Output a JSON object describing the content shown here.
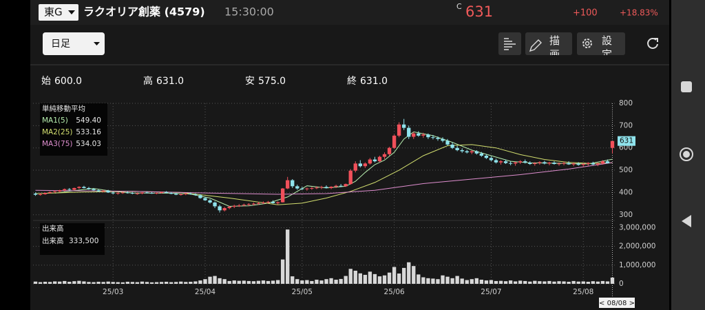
{
  "header": {
    "market": "東G",
    "name": "ラクオリア創薬 (4579)",
    "time": "15:30:00",
    "price_flag": "C",
    "price": "631",
    "change": "+100",
    "change_pct": "+18.83%"
  },
  "toolbar": {
    "period": "日足",
    "draw": "描画",
    "settings": "設定"
  },
  "ohlc_summary": [
    {
      "label": "始",
      "value": "600.0"
    },
    {
      "label": "高",
      "value": "631.0"
    },
    {
      "label": "安",
      "value": "575.0"
    },
    {
      "label": "終",
      "value": "631.0"
    }
  ],
  "chart_data": {
    "type": "candlestick",
    "categories": [
      null,
      null,
      null,
      null,
      null,
      null,
      null,
      null,
      null,
      null,
      null,
      null,
      null,
      null,
      null,
      null,
      "25/03",
      null,
      null,
      null,
      null,
      null,
      null,
      null,
      null,
      null,
      null,
      null,
      null,
      null,
      null,
      null,
      null,
      null,
      null,
      "25/04",
      null,
      null,
      null,
      null,
      null,
      null,
      null,
      null,
      null,
      null,
      null,
      null,
      null,
      null,
      null,
      null,
      null,
      null,
      null,
      "25/05",
      null,
      null,
      null,
      null,
      null,
      null,
      null,
      null,
      null,
      null,
      null,
      null,
      null,
      null,
      null,
      null,
      null,
      null,
      "25/06",
      null,
      null,
      null,
      null,
      null,
      null,
      null,
      null,
      null,
      null,
      null,
      null,
      null,
      null,
      null,
      null,
      null,
      null,
      null,
      "25/07",
      null,
      null,
      null,
      null,
      null,
      null,
      null,
      null,
      null,
      null,
      null,
      null,
      null,
      null,
      null,
      null,
      null,
      null,
      "25/08",
      null,
      null,
      null,
      null,
      null,
      null
    ],
    "ohlc": [
      [
        395,
        400,
        385,
        390
      ],
      [
        390,
        398,
        386,
        392
      ],
      [
        392,
        400,
        390,
        398
      ],
      [
        398,
        405,
        395,
        402
      ],
      [
        402,
        410,
        398,
        405
      ],
      [
        405,
        412,
        400,
        410
      ],
      [
        410,
        418,
        405,
        415
      ],
      [
        415,
        420,
        408,
        412
      ],
      [
        412,
        422,
        410,
        420
      ],
      [
        420,
        428,
        415,
        425
      ],
      [
        425,
        430,
        418,
        420
      ],
      [
        420,
        425,
        412,
        415
      ],
      [
        415,
        420,
        408,
        410
      ],
      [
        410,
        415,
        402,
        405
      ],
      [
        405,
        412,
        400,
        408
      ],
      [
        408,
        412,
        398,
        400
      ],
      [
        400,
        405,
        392,
        396
      ],
      [
        396,
        402,
        390,
        398
      ],
      [
        398,
        404,
        394,
        400
      ],
      [
        400,
        406,
        395,
        398
      ],
      [
        398,
        402,
        392,
        395
      ],
      [
        395,
        400,
        390,
        396
      ],
      [
        396,
        402,
        392,
        400
      ],
      [
        400,
        405,
        396,
        398
      ],
      [
        398,
        402,
        394,
        396
      ],
      [
        396,
        400,
        392,
        398
      ],
      [
        398,
        404,
        395,
        402
      ],
      [
        402,
        406,
        396,
        398
      ],
      [
        398,
        402,
        392,
        394
      ],
      [
        394,
        398,
        388,
        390
      ],
      [
        390,
        396,
        386,
        392
      ],
      [
        392,
        398,
        388,
        395
      ],
      [
        395,
        400,
        390,
        392
      ],
      [
        392,
        396,
        385,
        388
      ],
      [
        388,
        392,
        372,
        375
      ],
      [
        375,
        380,
        362,
        365
      ],
      [
        365,
        370,
        350,
        355
      ],
      [
        355,
        360,
        330,
        338
      ],
      [
        338,
        345,
        310,
        320
      ],
      [
        320,
        335,
        315,
        330
      ],
      [
        330,
        340,
        325,
        336
      ],
      [
        336,
        345,
        330,
        340
      ],
      [
        340,
        348,
        335,
        342
      ],
      [
        342,
        350,
        338,
        345
      ],
      [
        345,
        352,
        340,
        348
      ],
      [
        348,
        355,
        342,
        350
      ],
      [
        350,
        358,
        345,
        352
      ],
      [
        352,
        360,
        348,
        355
      ],
      [
        355,
        362,
        350,
        358
      ],
      [
        358,
        365,
        350,
        352
      ],
      [
        352,
        360,
        345,
        356
      ],
      [
        356,
        420,
        355,
        418
      ],
      [
        418,
        470,
        415,
        455
      ],
      [
        455,
        460,
        420,
        428
      ],
      [
        428,
        435,
        412,
        418
      ],
      [
        418,
        425,
        410,
        415
      ],
      [
        415,
        422,
        408,
        418
      ],
      [
        418,
        425,
        412,
        420
      ],
      [
        420,
        428,
        415,
        422
      ],
      [
        422,
        430,
        415,
        425
      ],
      [
        425,
        432,
        418,
        420
      ],
      [
        420,
        428,
        415,
        426
      ],
      [
        426,
        435,
        420,
        430
      ],
      [
        430,
        438,
        424,
        428
      ],
      [
        428,
        440,
        425,
        438
      ],
      [
        438,
        505,
        435,
        498
      ],
      [
        498,
        540,
        490,
        530
      ],
      [
        530,
        545,
        512,
        518
      ],
      [
        518,
        535,
        510,
        530
      ],
      [
        530,
        555,
        525,
        548
      ],
      [
        548,
        560,
        535,
        540
      ],
      [
        540,
        565,
        535,
        560
      ],
      [
        560,
        580,
        550,
        572
      ],
      [
        572,
        605,
        565,
        600
      ],
      [
        600,
        660,
        595,
        655
      ],
      [
        655,
        715,
        648,
        705
      ],
      [
        705,
        730,
        680,
        690
      ],
      [
        690,
        700,
        640,
        650
      ],
      [
        650,
        672,
        640,
        665
      ],
      [
        665,
        675,
        650,
        655
      ],
      [
        655,
        668,
        645,
        660
      ],
      [
        660,
        665,
        640,
        648
      ],
      [
        648,
        658,
        638,
        645
      ],
      [
        645,
        652,
        632,
        640
      ],
      [
        640,
        648,
        625,
        632
      ],
      [
        632,
        640,
        610,
        615
      ],
      [
        615,
        625,
        595,
        600
      ],
      [
        600,
        610,
        585,
        590
      ],
      [
        590,
        598,
        578,
        585
      ],
      [
        585,
        592,
        575,
        580
      ],
      [
        580,
        590,
        572,
        585
      ],
      [
        585,
        590,
        570,
        575
      ],
      [
        575,
        582,
        560,
        565
      ],
      [
        565,
        572,
        550,
        555
      ],
      [
        555,
        562,
        540,
        545
      ],
      [
        545,
        552,
        530,
        535
      ],
      [
        535,
        545,
        525,
        540
      ],
      [
        540,
        548,
        528,
        532
      ],
      [
        532,
        540,
        522,
        530
      ],
      [
        530,
        538,
        520,
        535
      ],
      [
        535,
        545,
        528,
        540
      ],
      [
        540,
        548,
        530,
        534
      ],
      [
        534,
        540,
        524,
        528
      ],
      [
        528,
        536,
        520,
        532
      ],
      [
        532,
        540,
        525,
        536
      ],
      [
        536,
        542,
        526,
        530
      ],
      [
        530,
        538,
        522,
        534
      ],
      [
        534,
        540,
        525,
        528
      ],
      [
        528,
        535,
        520,
        530
      ],
      [
        530,
        538,
        522,
        532
      ],
      [
        532,
        540,
        524,
        526
      ],
      [
        526,
        534,
        518,
        530
      ],
      [
        530,
        536,
        520,
        524
      ],
      [
        524,
        532,
        515,
        528
      ],
      [
        528,
        536,
        520,
        532
      ],
      [
        532,
        538,
        522,
        526
      ],
      [
        526,
        534,
        518,
        530
      ],
      [
        530,
        545,
        525,
        540
      ],
      [
        540,
        548,
        530,
        531
      ],
      [
        600,
        631,
        575,
        631
      ]
    ],
    "up_color": "#f0505a",
    "down_color": "#8fe3ec",
    "ylim": [
      290,
      800
    ],
    "yticks": [
      300,
      400,
      500,
      600,
      700,
      800
    ],
    "ma_title": "単純移動平均",
    "ma": [
      {
        "name": "MA1(5)",
        "color": "#b8f0b0",
        "legend_value": "549.40",
        "x": [
          4,
          8,
          12,
          16,
          20,
          24,
          28,
          32,
          36,
          40,
          44,
          48,
          52,
          56,
          60,
          64,
          66,
          68,
          70,
          72,
          74,
          76,
          78,
          82,
          86,
          90,
          94,
          98,
          102,
          106,
          110,
          114,
          119
        ],
        "values": [
          397,
          408,
          418,
          405,
          398,
          397,
          397,
          393,
          375,
          338,
          340,
          352,
          380,
          430,
          420,
          428,
          450,
          490,
          525,
          545,
          580,
          640,
          672,
          655,
          625,
          590,
          565,
          540,
          533,
          532,
          530,
          528,
          549.4
        ]
      },
      {
        "name": "MA2(25)",
        "color": "#d4e070",
        "legend_value": "533.16",
        "x": [
          0,
          10,
          20,
          30,
          40,
          50,
          55,
          60,
          65,
          70,
          75,
          80,
          85,
          90,
          95,
          100,
          105,
          110,
          115,
          119
        ],
        "values": [
          395,
          402,
          405,
          400,
          375,
          345,
          352,
          375,
          405,
          445,
          500,
          565,
          610,
          615,
          600,
          570,
          548,
          535,
          530,
          533.16
        ]
      },
      {
        "name": "MA3(75)",
        "color": "#e08fd0",
        "legend_value": "534.03",
        "x": [
          0,
          20,
          35,
          50,
          60,
          70,
          80,
          90,
          100,
          110,
          119
        ],
        "values": [
          410,
          405,
          398,
          392,
          395,
          410,
          440,
          460,
          480,
          505,
          534.03
        ]
      }
    ],
    "volume_title": "出来高",
    "volume_name": "出来高",
    "volume_last": "333,500",
    "volume_color": "#d8d8d8",
    "volume": [
      120000,
      90000,
      110000,
      100000,
      130000,
      120000,
      150000,
      110000,
      140000,
      160000,
      130000,
      100000,
      90000,
      110000,
      100000,
      120000,
      100000,
      90000,
      80000,
      110000,
      100000,
      90000,
      120000,
      100000,
      80000,
      90000,
      100000,
      110000,
      90000,
      100000,
      120000,
      100000,
      110000,
      130000,
      180000,
      250000,
      380000,
      420000,
      300000,
      250000,
      150000,
      180000,
      160000,
      170000,
      150000,
      140000,
      160000,
      180000,
      150000,
      170000,
      200000,
      1300000,
      2900000,
      400000,
      250000,
      180000,
      200000,
      150000,
      220000,
      180000,
      250000,
      300000,
      220000,
      260000,
      420000,
      800000,
      700000,
      560000,
      480000,
      650000,
      520000,
      400000,
      450000,
      600000,
      900000,
      550000,
      850000,
      1150000,
      950000,
      500000,
      350000,
      300000,
      280000,
      250000,
      450000,
      380000,
      300000,
      420000,
      280000,
      200000,
      250000,
      300000,
      220000,
      180000,
      200000,
      150000,
      160000,
      140000,
      180000,
      130000,
      170000,
      150000,
      120000,
      160000,
      140000,
      130000,
      150000,
      120000,
      140000,
      130000,
      110000,
      150000,
      120000,
      130000,
      110000,
      140000,
      120000,
      150000,
      130000,
      333500
    ],
    "vlim": [
      0,
      3200000
    ],
    "vticks": [
      0,
      {
        "value": 1000000,
        "label": "1,000,000"
      },
      {
        "value": 2000000,
        "label": "2,000,000"
      },
      {
        "value": 3000000,
        "label": "3,000,000"
      }
    ],
    "cursor_label": "< 08/08 >"
  }
}
